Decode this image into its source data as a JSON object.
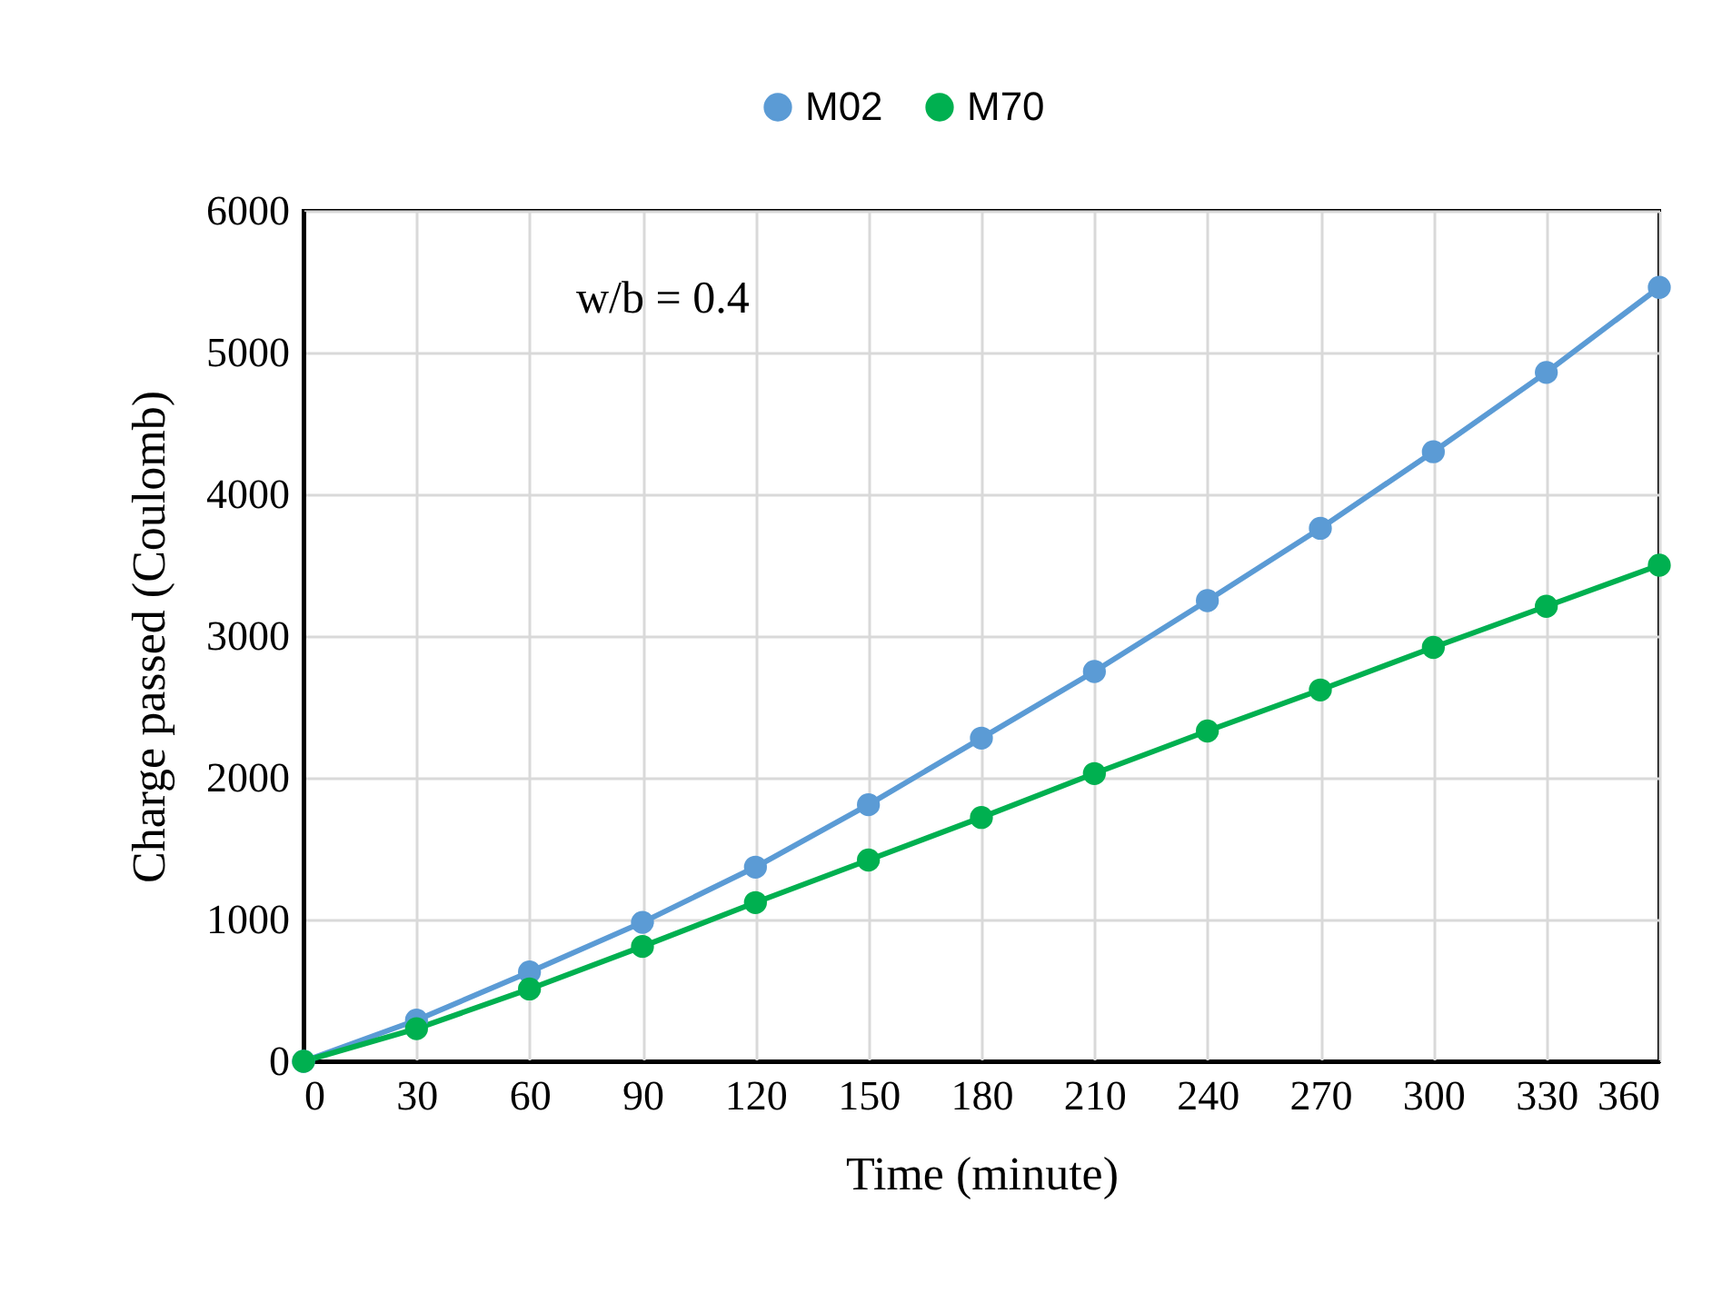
{
  "chart_data": {
    "type": "line",
    "xlabel": "Time (minute)",
    "ylabel": "Charge passed (Coulomb)",
    "x": [
      0,
      30,
      60,
      90,
      120,
      150,
      180,
      210,
      240,
      270,
      300,
      330,
      360
    ],
    "series": [
      {
        "name": "M02",
        "color": "#5b9bd5",
        "values": [
          0,
          290,
          630,
          980,
          1370,
          1810,
          2280,
          2750,
          3250,
          3760,
          4300,
          4860,
          5460
        ]
      },
      {
        "name": "M70",
        "color": "#00b050",
        "values": [
          0,
          230,
          510,
          810,
          1120,
          1420,
          1720,
          2030,
          2330,
          2620,
          2920,
          3210,
          3500
        ]
      }
    ],
    "xlim": [
      0,
      360
    ],
    "xticks": [
      0,
      30,
      60,
      90,
      120,
      150,
      180,
      210,
      240,
      270,
      300,
      330,
      360
    ],
    "ylim": [
      0,
      6000
    ],
    "yticks": [
      0,
      1000,
      2000,
      3000,
      4000,
      5000,
      6000
    ],
    "annotations": [
      "w/b = 0.4"
    ],
    "grid": true,
    "legend": "top",
    "marker": "circle",
    "line_style": "solid"
  }
}
